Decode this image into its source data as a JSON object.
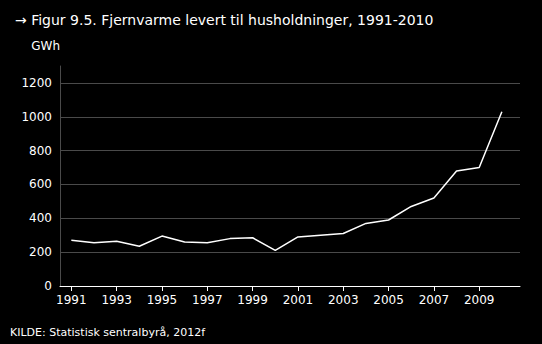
{
  "chart_data": {
    "type": "line",
    "title": "→ Figur 9.5. Fjernvarme levert til husholdninger, 1991-2010",
    "ylabel": "GWh",
    "source": "KILDE: Statistisk sentralbyrå, 2012f",
    "x": [
      1991,
      1992,
      1993,
      1994,
      1995,
      1996,
      1997,
      1998,
      1999,
      2000,
      2001,
      2002,
      2003,
      2004,
      2005,
      2006,
      2007,
      2008,
      2009,
      2010
    ],
    "values": [
      270,
      255,
      265,
      235,
      295,
      260,
      255,
      280,
      285,
      210,
      290,
      300,
      310,
      370,
      390,
      470,
      520,
      680,
      700,
      1030
    ],
    "color": "#ffffff",
    "xlim": [
      1990.5,
      2010.8
    ],
    "xticks": [
      1991,
      1993,
      1995,
      1997,
      1999,
      2001,
      2003,
      2005,
      2007,
      2009
    ],
    "ylim": [
      0,
      1300
    ],
    "yticks": [
      0,
      200,
      400,
      600,
      800,
      1000,
      1200
    ],
    "grid": true
  }
}
